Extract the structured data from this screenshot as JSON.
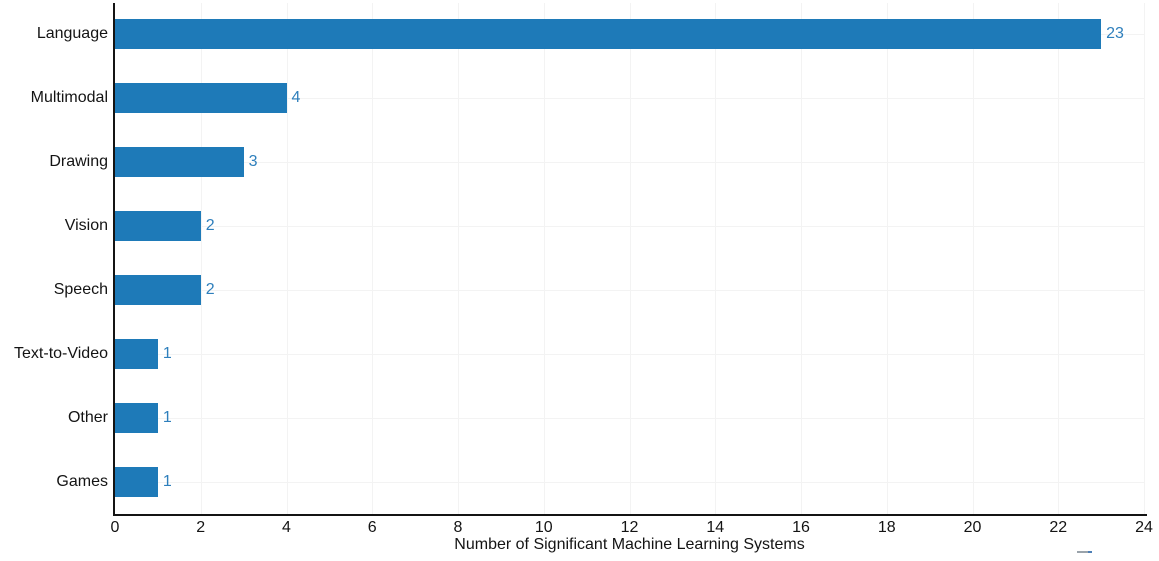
{
  "chart_data": {
    "type": "bar",
    "orientation": "horizontal",
    "title": "",
    "xlabel": "Number of Significant Machine Learning Systems",
    "ylabel": "",
    "categories": [
      "Language",
      "Multimodal",
      "Drawing",
      "Vision",
      "Speech",
      "Text-to-Video",
      "Other",
      "Games"
    ],
    "values": [
      23,
      4,
      3,
      2,
      2,
      1,
      1,
      1
    ],
    "value_labels": [
      "23",
      "4",
      "3",
      "2",
      "2",
      "1",
      "1",
      "1"
    ],
    "xlim": [
      0,
      24
    ],
    "xticks": [
      0,
      2,
      4,
      6,
      8,
      10,
      12,
      14,
      16,
      18,
      20,
      22,
      24
    ],
    "grid": {
      "vertical_at_ticks": true,
      "horizontal_at_row_centers": true
    },
    "legend": "none"
  },
  "colors": {
    "background": "#ffffff",
    "bar": "#1e7ab8",
    "value_label": "#2e7fbc",
    "grid": "#f3f3f3",
    "axis_line": "#141414",
    "tick_label": "#141414",
    "category_label": "#141414",
    "axis_title": "#141414",
    "artifact_gray": "#9aa3ab",
    "artifact_blue": "#4d7fb6"
  }
}
